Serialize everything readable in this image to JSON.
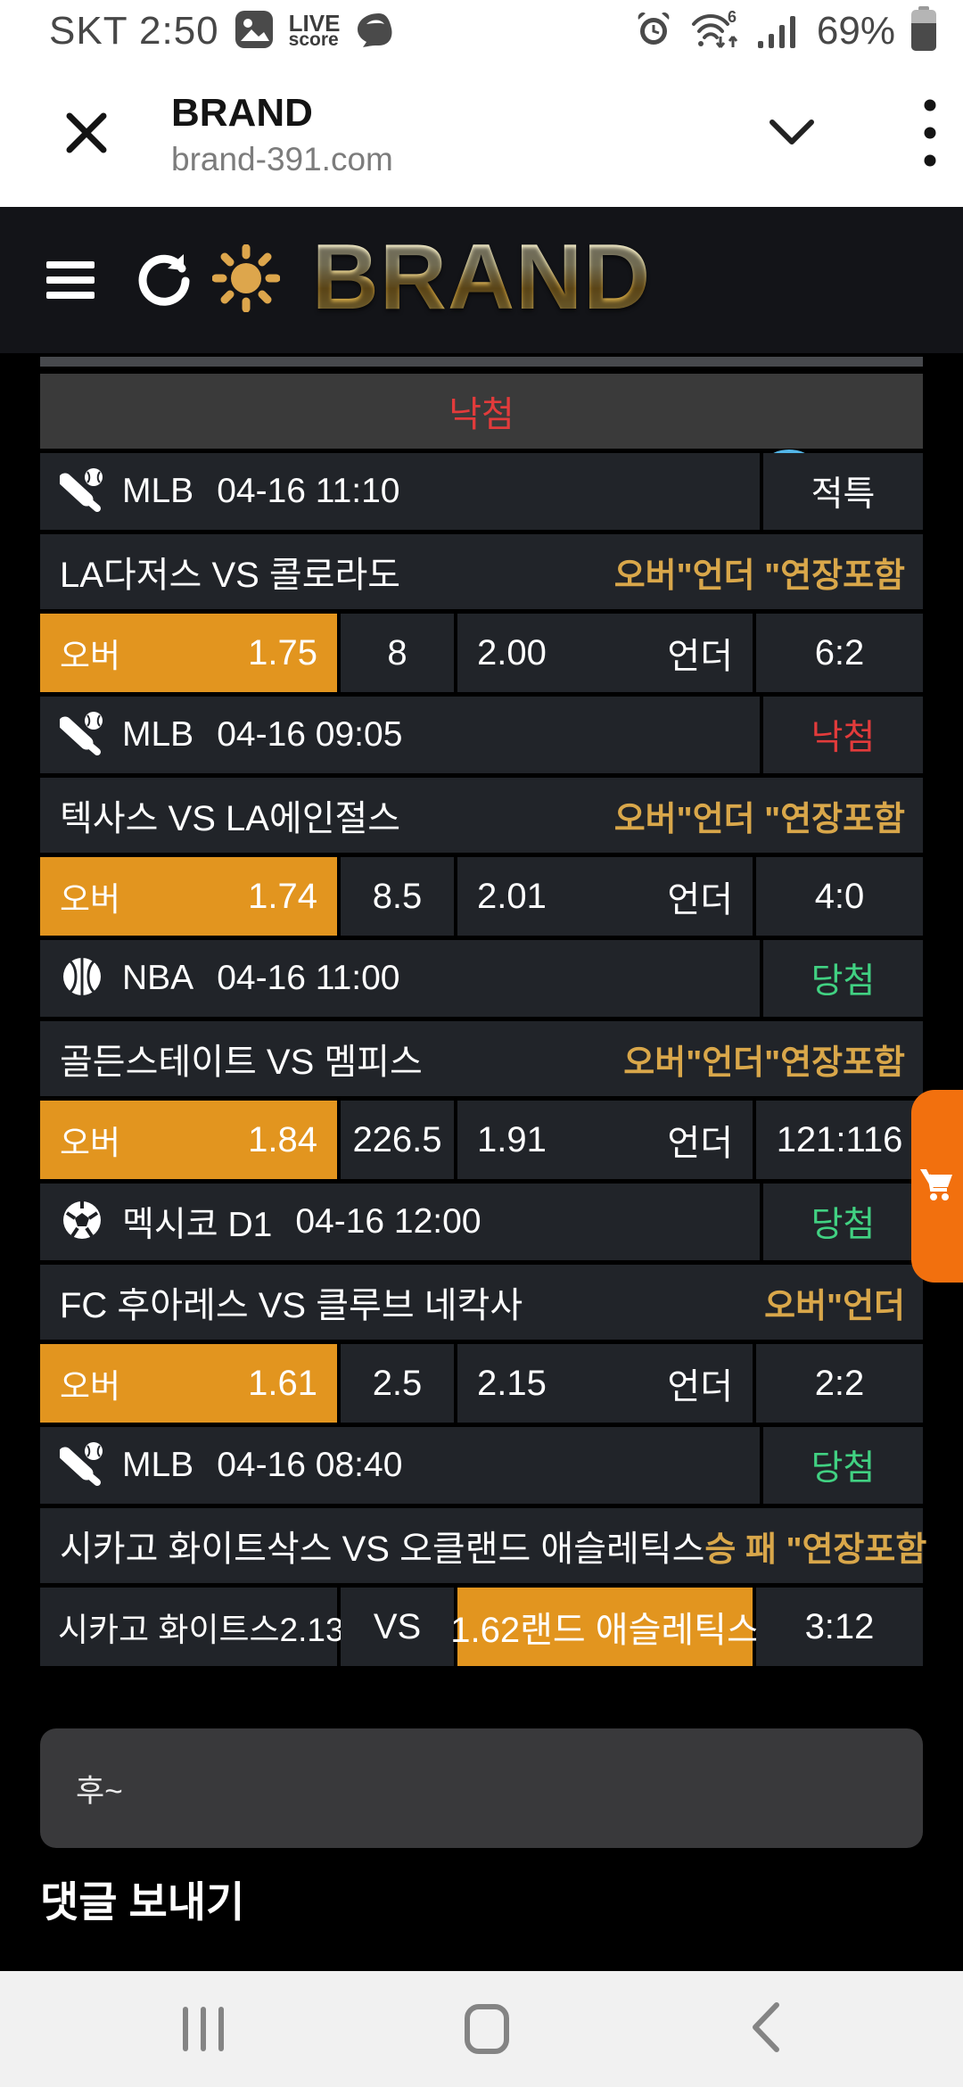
{
  "status_bar": {
    "carrier_time": "SKT 2:50",
    "livescore": {
      "line1": "LIVE",
      "line2": "score"
    },
    "battery_percent": "69%"
  },
  "browser": {
    "title": "BRAND",
    "url": "brand-391.com"
  },
  "app_header": {
    "logo_text": "BRAND"
  },
  "table": {
    "status_header": "낙첨",
    "matches": [
      {
        "sport_icon": "baseball-icon",
        "league": "MLB",
        "datetime": "04-16 11:10",
        "result": "적특",
        "result_type": "plain",
        "teams": "LA다저스 VS 콜로라도",
        "market": "오버\"언더 \"연장포함",
        "odds": {
          "type": "ou",
          "pick": "오버",
          "pick_odds": "1.75",
          "line": "8",
          "other_odds": "2.00",
          "other": "언더",
          "score": "6:2"
        }
      },
      {
        "sport_icon": "baseball-icon",
        "league": "MLB",
        "datetime": "04-16 09:05",
        "result": "낙첨",
        "result_type": "lose",
        "teams": "텍사스 VS LA에인절스",
        "market": "오버\"언더 \"연장포함",
        "odds": {
          "type": "ou",
          "pick": "오버",
          "pick_odds": "1.74",
          "line": "8.5",
          "other_odds": "2.01",
          "other": "언더",
          "score": "4:0"
        }
      },
      {
        "sport_icon": "basketball-icon",
        "league": "NBA",
        "datetime": "04-16 11:00",
        "result": "당첨",
        "result_type": "win",
        "teams": "골든스테이트 VS 멤피스",
        "market": "오버\"언더\"연장포함",
        "odds": {
          "type": "ou",
          "pick": "오버",
          "pick_odds": "1.84",
          "line": "226.5",
          "other_odds": "1.91",
          "other": "언더",
          "score": "121:116"
        }
      },
      {
        "sport_icon": "soccer-icon",
        "league": "멕시코 D1",
        "datetime": "04-16 12:00",
        "result": "당첨",
        "result_type": "win",
        "teams": "FC 후아레스 VS 클루브 네칵사",
        "market": "오버\"언더",
        "odds": {
          "type": "ou",
          "pick": "오버",
          "pick_odds": "1.61",
          "line": "2.5",
          "other_odds": "2.15",
          "other": "언더",
          "score": "2:2"
        }
      },
      {
        "sport_icon": "baseball-icon",
        "league": "MLB",
        "datetime": "04-16 08:40",
        "result": "당첨",
        "result_type": "win",
        "teams": "시카고 화이트삭스 VS 오클랜드 애슬레틱스",
        "market": "승 패 \"연장포함",
        "odds": {
          "type": "winlose",
          "home": "시카고 화이트스2.13",
          "vs": "VS",
          "away": "1.62랜드 애슬레틱스",
          "score": "3:12"
        }
      }
    ]
  },
  "comment": {
    "text": "후~",
    "send_label": "댓글 보내기"
  },
  "colors": {
    "accent_orange": "#e2951f",
    "cart_orange": "#f2700e",
    "gold": "#d9a74a",
    "lose_red": "#e23b3b",
    "win_green": "#41d182",
    "row_bg": "#212429",
    "header_gray": "#3a3a3a"
  }
}
